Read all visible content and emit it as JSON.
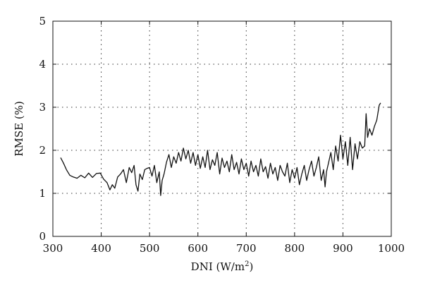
{
  "chart_data": {
    "type": "line",
    "xlabel": "DNI (W/m",
    "xlabel_sup": "2",
    "xlabel_end": ")",
    "ylabel": "RMSE (%)",
    "xlim": [
      300,
      1000
    ],
    "ylim": [
      0,
      5
    ],
    "xticks": [
      300,
      400,
      500,
      600,
      700,
      800,
      900,
      1000
    ],
    "yticks": [
      0,
      1,
      2,
      3,
      4,
      5
    ],
    "xtick_labels": [
      "300",
      "400",
      "500",
      "600",
      "700",
      "800",
      "900",
      "1000"
    ],
    "ytick_labels": [
      "0",
      "1",
      "2",
      "3",
      "4",
      "5"
    ],
    "grid": true,
    "grid_style": "dotted",
    "line_color": "#111111",
    "series": [
      {
        "x": [
          316,
          322,
          328,
          335,
          342,
          350,
          358,
          366,
          374,
          382,
          390,
          398,
          405,
          412,
          418,
          423,
          428,
          434,
          440,
          446,
          452,
          458,
          463,
          468,
          472,
          476,
          480,
          485,
          490,
          495,
          500,
          505,
          510,
          515,
          520,
          523,
          526,
          530,
          535,
          540,
          545,
          550,
          555,
          560,
          565,
          570,
          575,
          580,
          585,
          590,
          595,
          600,
          605,
          610,
          615,
          620,
          625,
          630,
          635,
          640,
          645,
          650,
          655,
          660,
          665,
          670,
          675,
          680,
          685,
          690,
          695,
          700,
          705,
          710,
          715,
          720,
          725,
          730,
          735,
          740,
          745,
          750,
          755,
          760,
          765,
          770,
          775,
          780,
          785,
          790,
          795,
          800,
          805,
          810,
          815,
          820,
          825,
          830,
          835,
          840,
          845,
          850,
          855,
          860,
          863,
          866,
          870,
          875,
          880,
          885,
          890,
          895,
          900,
          905,
          910,
          915,
          920,
          925,
          930,
          935,
          940,
          945,
          948,
          951,
          955,
          960,
          965,
          970,
          975,
          978
        ],
        "y": [
          1.83,
          1.7,
          1.55,
          1.42,
          1.38,
          1.35,
          1.42,
          1.36,
          1.47,
          1.37,
          1.46,
          1.47,
          1.33,
          1.25,
          1.08,
          1.2,
          1.12,
          1.38,
          1.45,
          1.55,
          1.25,
          1.6,
          1.48,
          1.65,
          1.2,
          1.05,
          1.45,
          1.32,
          1.55,
          1.58,
          1.6,
          1.4,
          1.65,
          1.25,
          1.5,
          0.95,
          1.3,
          1.45,
          1.72,
          1.9,
          1.6,
          1.85,
          1.7,
          1.95,
          1.75,
          2.05,
          1.8,
          2.0,
          1.7,
          1.95,
          1.65,
          1.9,
          1.58,
          1.85,
          1.6,
          2.0,
          1.55,
          1.78,
          1.65,
          1.95,
          1.45,
          1.82,
          1.6,
          1.75,
          1.5,
          1.9,
          1.55,
          1.72,
          1.45,
          1.8,
          1.55,
          1.7,
          1.4,
          1.75,
          1.5,
          1.65,
          1.4,
          1.8,
          1.5,
          1.62,
          1.35,
          1.7,
          1.45,
          1.6,
          1.3,
          1.65,
          1.5,
          1.4,
          1.7,
          1.25,
          1.55,
          1.35,
          1.6,
          1.2,
          1.45,
          1.65,
          1.3,
          1.55,
          1.75,
          1.4,
          1.6,
          1.85,
          1.3,
          1.55,
          1.15,
          1.5,
          1.7,
          1.95,
          1.55,
          2.1,
          1.75,
          2.35,
          1.8,
          2.2,
          1.65,
          2.3,
          1.55,
          2.15,
          1.8,
          2.2,
          2.05,
          2.1,
          2.85,
          2.3,
          2.5,
          2.35,
          2.55,
          2.7,
          3.05,
          3.1
        ]
      }
    ]
  }
}
